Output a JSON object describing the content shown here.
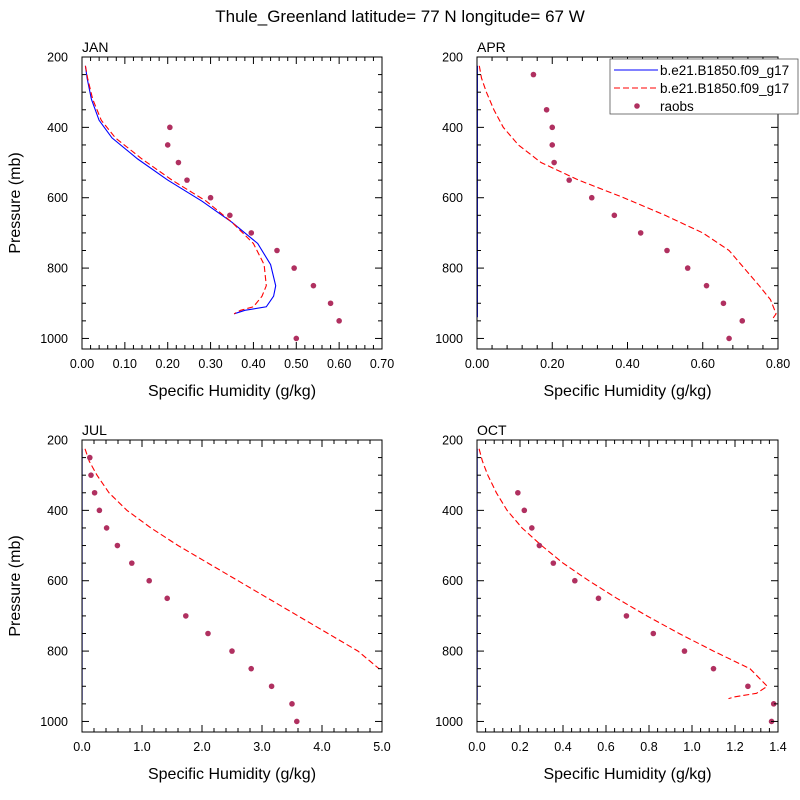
{
  "title": "Thule_Greenland  latitude= 77 N longitude= 67 W",
  "colors": {
    "model1": "#0000ff",
    "model2": "#ff0000",
    "obs": "#b03060",
    "frame": "#000000"
  },
  "legend": {
    "location": "top-right",
    "entries": [
      {
        "label": "b.e21.B1850.f09_g17",
        "style": "solid-line",
        "color": "#0000ff"
      },
      {
        "label": "b.e21.B1850.f09_g17",
        "style": "dashed-line",
        "color": "#ff0000"
      },
      {
        "label": "raobs",
        "style": "marker",
        "color": "#b03060"
      }
    ]
  },
  "chart_data": [
    {
      "type": "line",
      "panel": "JAN",
      "title": "JAN",
      "xlabel": "Specific Humidity (g/kg)",
      "ylabel": "Pressure (mb)",
      "xlim": [
        0,
        0.7
      ],
      "ylim": [
        200,
        1030
      ],
      "y_inverted": true,
      "xticks": [
        0,
        0.1,
        0.2,
        0.3,
        0.4,
        0.5,
        0.6,
        0.7
      ],
      "xtick_labels": [
        "0.00",
        "0.10",
        "0.20",
        "0.30",
        "0.40",
        "0.50",
        "0.60",
        "0.70"
      ],
      "yticks": [
        200,
        400,
        600,
        800,
        1000
      ],
      "ytick_labels": [
        "200",
        "400",
        "600",
        "800",
        "1000"
      ],
      "series": [
        {
          "name": "b.e21.B1850.f09_g17",
          "style": "solid",
          "color": "#0000ff",
          "x": [
            0.008,
            0.012,
            0.022,
            0.04,
            0.07,
            0.13,
            0.2,
            0.28,
            0.35,
            0.41,
            0.44,
            0.452,
            0.447,
            0.43,
            0.38,
            0.355
          ],
          "y": [
            225,
            260,
            320,
            380,
            430,
            490,
            550,
            610,
            670,
            730,
            790,
            850,
            880,
            910,
            920,
            930
          ]
        },
        {
          "name": "b.e21.B1850.f09_g17",
          "style": "dashed",
          "color": "#ff0000",
          "x": [
            0.008,
            0.013,
            0.025,
            0.045,
            0.078,
            0.14,
            0.21,
            0.29,
            0.35,
            0.4,
            0.425,
            0.43,
            0.42,
            0.4,
            0.37,
            0.355
          ],
          "y": [
            225,
            260,
            320,
            380,
            430,
            490,
            550,
            610,
            670,
            730,
            790,
            850,
            880,
            910,
            920,
            930
          ]
        },
        {
          "name": "raobs",
          "style": "marker",
          "color": "#b03060",
          "x": [
            0.205,
            0.2,
            0.225,
            0.245,
            0.3,
            0.345,
            0.395,
            0.455,
            0.495,
            0.54,
            0.58,
            0.6,
            0.5
          ],
          "y": [
            400,
            450,
            500,
            550,
            600,
            650,
            700,
            750,
            800,
            850,
            900,
            950,
            1000
          ]
        }
      ]
    },
    {
      "type": "line",
      "panel": "APR",
      "title": "APR",
      "xlabel": "Specific Humidity (g/kg)",
      "ylabel": "",
      "xlim": [
        0,
        0.8
      ],
      "ylim": [
        200,
        1030
      ],
      "y_inverted": true,
      "xticks": [
        0,
        0.2,
        0.4,
        0.6,
        0.8
      ],
      "xtick_labels": [
        "0.00",
        "0.20",
        "0.40",
        "0.60",
        "0.80"
      ],
      "yticks": [
        200,
        400,
        600,
        800,
        1000
      ],
      "ytick_labels": [
        "200",
        "400",
        "600",
        "800",
        "1000"
      ],
      "series": [
        {
          "name": "b.e21.B1850.f09_g17",
          "style": "solid",
          "color": "#0000ff",
          "x": [
            0.001,
            0.001,
            0.001,
            0.001
          ],
          "y": [
            225,
            500,
            800,
            940
          ]
        },
        {
          "name": "b.e21.B1850.f09_g17",
          "style": "dashed",
          "color": "#ff0000",
          "x": [
            0.006,
            0.012,
            0.025,
            0.045,
            0.07,
            0.11,
            0.17,
            0.27,
            0.39,
            0.5,
            0.6,
            0.67,
            0.71,
            0.75,
            0.78,
            0.795,
            0.785
          ],
          "y": [
            225,
            260,
            300,
            350,
            400,
            450,
            500,
            550,
            600,
            650,
            700,
            750,
            800,
            850,
            890,
            930,
            945
          ]
        },
        {
          "name": "raobs",
          "style": "marker",
          "color": "#b03060",
          "x": [
            0.15,
            0.185,
            0.2,
            0.2,
            0.205,
            0.245,
            0.305,
            0.365,
            0.435,
            0.505,
            0.56,
            0.61,
            0.655,
            0.705,
            0.67
          ],
          "y": [
            250,
            350,
            400,
            450,
            500,
            550,
            600,
            650,
            700,
            750,
            800,
            850,
            900,
            950,
            1000
          ]
        }
      ]
    },
    {
      "type": "line",
      "panel": "JUL",
      "title": "JUL",
      "xlabel": "Specific Humidity (g/kg)",
      "ylabel": "Pressure (mb)",
      "xlim": [
        0,
        5.0
      ],
      "ylim": [
        200,
        1030
      ],
      "y_inverted": true,
      "xticks": [
        0,
        1,
        2,
        3,
        4,
        5
      ],
      "xtick_labels": [
        "0.0",
        "1.0",
        "2.0",
        "3.0",
        "4.0",
        "5.0"
      ],
      "yticks": [
        200,
        400,
        600,
        800,
        1000
      ],
      "ytick_labels": [
        "200",
        "400",
        "600",
        "800",
        "1000"
      ],
      "series": [
        {
          "name": "b.e21.B1850.f09_g17",
          "style": "solid",
          "color": "#0000ff",
          "x": [
            0.002,
            0.002,
            0.002,
            0.002
          ],
          "y": [
            225,
            500,
            800,
            940
          ]
        },
        {
          "name": "b.e21.B1850.f09_g17",
          "style": "dashed",
          "color": "#ff0000",
          "x": [
            0.05,
            0.12,
            0.25,
            0.45,
            0.75,
            1.15,
            1.6,
            2.1,
            2.6,
            3.1,
            3.6,
            4.1,
            4.6,
            4.95
          ],
          "y": [
            225,
            260,
            300,
            350,
            400,
            450,
            500,
            550,
            600,
            650,
            700,
            750,
            800,
            850
          ]
        },
        {
          "name": "raobs",
          "style": "marker",
          "color": "#b03060",
          "x": [
            0.13,
            0.15,
            0.21,
            0.29,
            0.41,
            0.59,
            0.83,
            1.12,
            1.42,
            1.73,
            2.1,
            2.5,
            2.82,
            3.16,
            3.5,
            3.58
          ],
          "y": [
            250,
            300,
            350,
            400,
            450,
            500,
            550,
            600,
            650,
            700,
            750,
            800,
            850,
            900,
            950,
            1000
          ]
        }
      ]
    },
    {
      "type": "line",
      "panel": "OCT",
      "title": "OCT",
      "xlabel": "Specific Humidity (g/kg)",
      "ylabel": "",
      "xlim": [
        0,
        1.4
      ],
      "ylim": [
        200,
        1030
      ],
      "y_inverted": true,
      "xticks": [
        0,
        0.2,
        0.4,
        0.6,
        0.8,
        1.0,
        1.2,
        1.4
      ],
      "xtick_labels": [
        "0.0",
        "0.2",
        "0.4",
        "0.6",
        "0.8",
        "1.0",
        "1.2",
        "1.4"
      ],
      "yticks": [
        200,
        400,
        600,
        800,
        1000
      ],
      "ytick_labels": [
        "200",
        "400",
        "600",
        "800",
        "1000"
      ],
      "series": [
        {
          "name": "b.e21.B1850.f09_g17",
          "style": "solid",
          "color": "#0000ff",
          "x": [
            0.001,
            0.001,
            0.001,
            0.001
          ],
          "y": [
            225,
            500,
            800,
            940
          ]
        },
        {
          "name": "b.e21.B1850.f09_g17",
          "style": "dashed",
          "color": "#ff0000",
          "x": [
            0.01,
            0.025,
            0.05,
            0.09,
            0.14,
            0.21,
            0.3,
            0.4,
            0.52,
            0.65,
            0.79,
            0.94,
            1.1,
            1.27,
            1.35,
            1.3,
            1.2,
            1.17
          ],
          "y": [
            225,
            260,
            300,
            350,
            400,
            450,
            500,
            550,
            600,
            650,
            700,
            750,
            800,
            850,
            900,
            920,
            930,
            935
          ]
        },
        {
          "name": "raobs",
          "style": "marker",
          "color": "#b03060",
          "x": [
            0.19,
            0.22,
            0.255,
            0.29,
            0.355,
            0.455,
            0.565,
            0.695,
            0.82,
            0.965,
            1.1,
            1.26,
            1.38,
            1.37
          ],
          "y": [
            350,
            400,
            450,
            500,
            550,
            600,
            650,
            700,
            750,
            800,
            850,
            900,
            950,
            1000
          ]
        }
      ]
    }
  ]
}
